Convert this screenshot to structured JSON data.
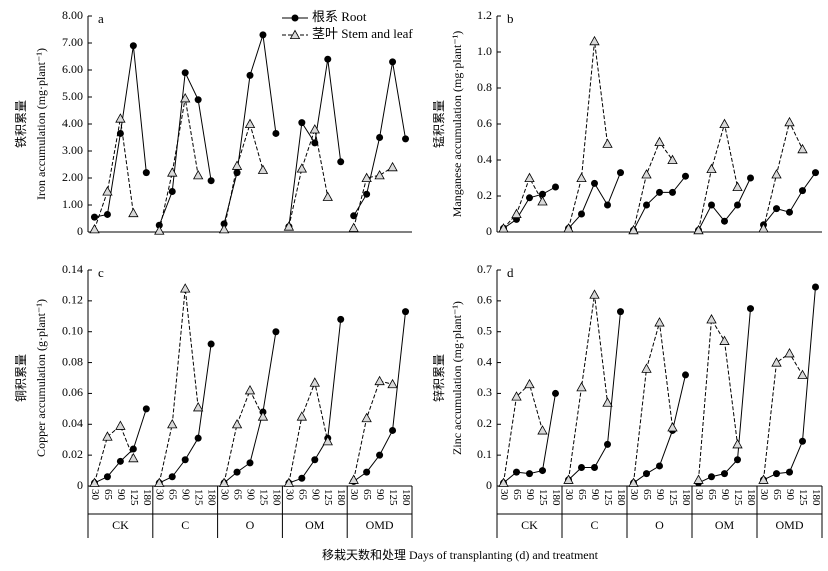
{
  "xlabel": "移栽天数和处理 Days of transplanting (d) and treatment",
  "chart_data": [
    {
      "type": "line",
      "panel": "a",
      "ylabel": [
        "铁积累量",
        "Iron accumulation (mg·plant⁻¹)"
      ],
      "ylim": [
        0,
        8
      ],
      "yticks": [
        0,
        {
          "value": 1,
          "label": "1.00"
        },
        {
          "value": 2,
          "label": "2.00"
        },
        {
          "value": 3,
          "label": "3.00"
        },
        {
          "value": 4,
          "label": "4.00"
        },
        {
          "value": 5,
          "label": "5.00"
        },
        {
          "value": 6,
          "label": "6.00"
        },
        {
          "value": 7,
          "label": "7.00"
        },
        {
          "value": 8,
          "label": "8.00"
        }
      ],
      "legend": "top-center",
      "series": [
        {
          "name": "根系 Root",
          "color": "#000000",
          "marker": "circle",
          "dashed": false,
          "values": [
            0.55,
            0.65,
            3.65,
            6.9,
            2.2,
            0.25,
            1.5,
            5.9,
            4.9,
            1.9,
            0.3,
            2.2,
            5.8,
            7.3,
            3.65,
            0.2,
            4.05,
            3.3,
            6.4,
            2.6,
            0.6,
            1.4,
            3.5,
            6.3,
            3.45
          ]
        },
        {
          "name": "茎叶 Stem and leaf",
          "color": "#000000",
          "marker": "triangle",
          "dashed": true,
          "values": [
            0.1,
            1.5,
            4.2,
            0.7,
            null,
            0.05,
            2.2,
            4.95,
            2.1,
            null,
            0.1,
            2.45,
            4.0,
            2.3,
            null,
            0.2,
            2.35,
            3.8,
            1.3,
            null,
            0.15,
            2.0,
            2.1,
            2.4,
            null
          ]
        }
      ]
    },
    {
      "type": "line",
      "panel": "b",
      "ylabel": [
        "锰积累量",
        "Manganese accumulation (mg·plant⁻¹)"
      ],
      "ylim": [
        0,
        1.2
      ],
      "yticks": [
        0,
        0.2,
        0.4,
        0.6,
        0.8,
        {
          "value": 1,
          "label": "1.0"
        },
        1.2
      ],
      "series": [
        {
          "color": "#000000",
          "marker": "circle",
          "dashed": false,
          "values": [
            0.02,
            0.07,
            0.19,
            0.21,
            0.25,
            0.02,
            0.1,
            0.27,
            0.15,
            0.33,
            0.01,
            0.15,
            0.22,
            0.22,
            0.31,
            0.01,
            0.15,
            0.06,
            0.15,
            0.3,
            0.04,
            0.13,
            0.11,
            0.23,
            0.33
          ]
        },
        {
          "color": "#000000",
          "marker": "triangle",
          "dashed": true,
          "values": [
            0.02,
            0.1,
            0.3,
            0.17,
            null,
            0.02,
            0.3,
            1.06,
            0.49,
            null,
            0.01,
            0.32,
            0.5,
            0.4,
            null,
            0.01,
            0.35,
            0.6,
            0.25,
            null,
            0.02,
            0.32,
            0.61,
            0.46,
            null
          ]
        }
      ]
    },
    {
      "type": "line",
      "panel": "c",
      "ylabel": [
        "铜积累量",
        "Copper accumulation (g·plant⁻¹)"
      ],
      "ylim": [
        0,
        0.14
      ],
      "yticks": [
        0,
        0.02,
        0.04,
        0.06,
        0.08,
        {
          "value": 0.1,
          "label": "0.10"
        },
        0.12,
        0.14
      ],
      "categories": [
        "30",
        "65",
        "90",
        "125",
        "180",
        "30",
        "65",
        "90",
        "125",
        "180",
        "30",
        "65",
        "90",
        "125",
        "180",
        "30",
        "65",
        "90",
        "125",
        "180",
        "30",
        "65",
        "90",
        "125",
        "180"
      ],
      "groups": [
        "CK",
        "C",
        "O",
        "OM",
        "OMD"
      ],
      "series": [
        {
          "color": "#000000",
          "marker": "circle",
          "dashed": false,
          "values": [
            0.002,
            0.006,
            0.016,
            0.024,
            0.05,
            0.002,
            0.006,
            0.017,
            0.031,
            0.092,
            0.002,
            0.009,
            0.015,
            0.048,
            0.1,
            0.002,
            0.005,
            0.017,
            0.031,
            0.108,
            0.003,
            0.009,
            0.02,
            0.036,
            0.113
          ]
        },
        {
          "color": "#000000",
          "marker": "triangle",
          "dashed": true,
          "values": [
            0.002,
            0.032,
            0.039,
            0.018,
            null,
            0.002,
            0.04,
            0.128,
            0.051,
            null,
            0.002,
            0.04,
            0.062,
            0.045,
            null,
            0.002,
            0.045,
            0.067,
            0.029,
            null,
            0.004,
            0.044,
            0.068,
            0.066,
            null
          ]
        }
      ]
    },
    {
      "type": "line",
      "panel": "d",
      "ylabel": [
        "锌积累量",
        "Zinc accumulation (mg·plant⁻¹)"
      ],
      "ylim": [
        0,
        0.7
      ],
      "yticks": [
        0,
        0.1,
        0.2,
        0.3,
        0.4,
        0.5,
        0.6,
        0.7
      ],
      "categories": [
        "30",
        "65",
        "90",
        "125",
        "180",
        "30",
        "65",
        "90",
        "125",
        "180",
        "30",
        "65",
        "90",
        "125",
        "180",
        "30",
        "65",
        "90",
        "125",
        "180",
        "30",
        "65",
        "90",
        "125",
        "180"
      ],
      "groups": [
        "CK",
        "C",
        "O",
        "OM",
        "OMD"
      ],
      "series": [
        {
          "color": "#000000",
          "marker": "circle",
          "dashed": false,
          "values": [
            0.01,
            0.045,
            0.04,
            0.05,
            0.3,
            0.02,
            0.06,
            0.06,
            0.135,
            0.565,
            0.01,
            0.04,
            0.065,
            0.18,
            0.36,
            0.01,
            0.03,
            0.04,
            0.085,
            0.575,
            0.02,
            0.04,
            0.045,
            0.145,
            0.645
          ]
        },
        {
          "color": "#000000",
          "marker": "triangle",
          "dashed": true,
          "values": [
            0.01,
            0.29,
            0.33,
            0.18,
            null,
            0.02,
            0.32,
            0.62,
            0.27,
            null,
            0.01,
            0.38,
            0.53,
            0.19,
            null,
            0.02,
            0.54,
            0.47,
            0.135,
            null,
            0.02,
            0.4,
            0.43,
            0.36,
            null
          ]
        }
      ]
    }
  ]
}
